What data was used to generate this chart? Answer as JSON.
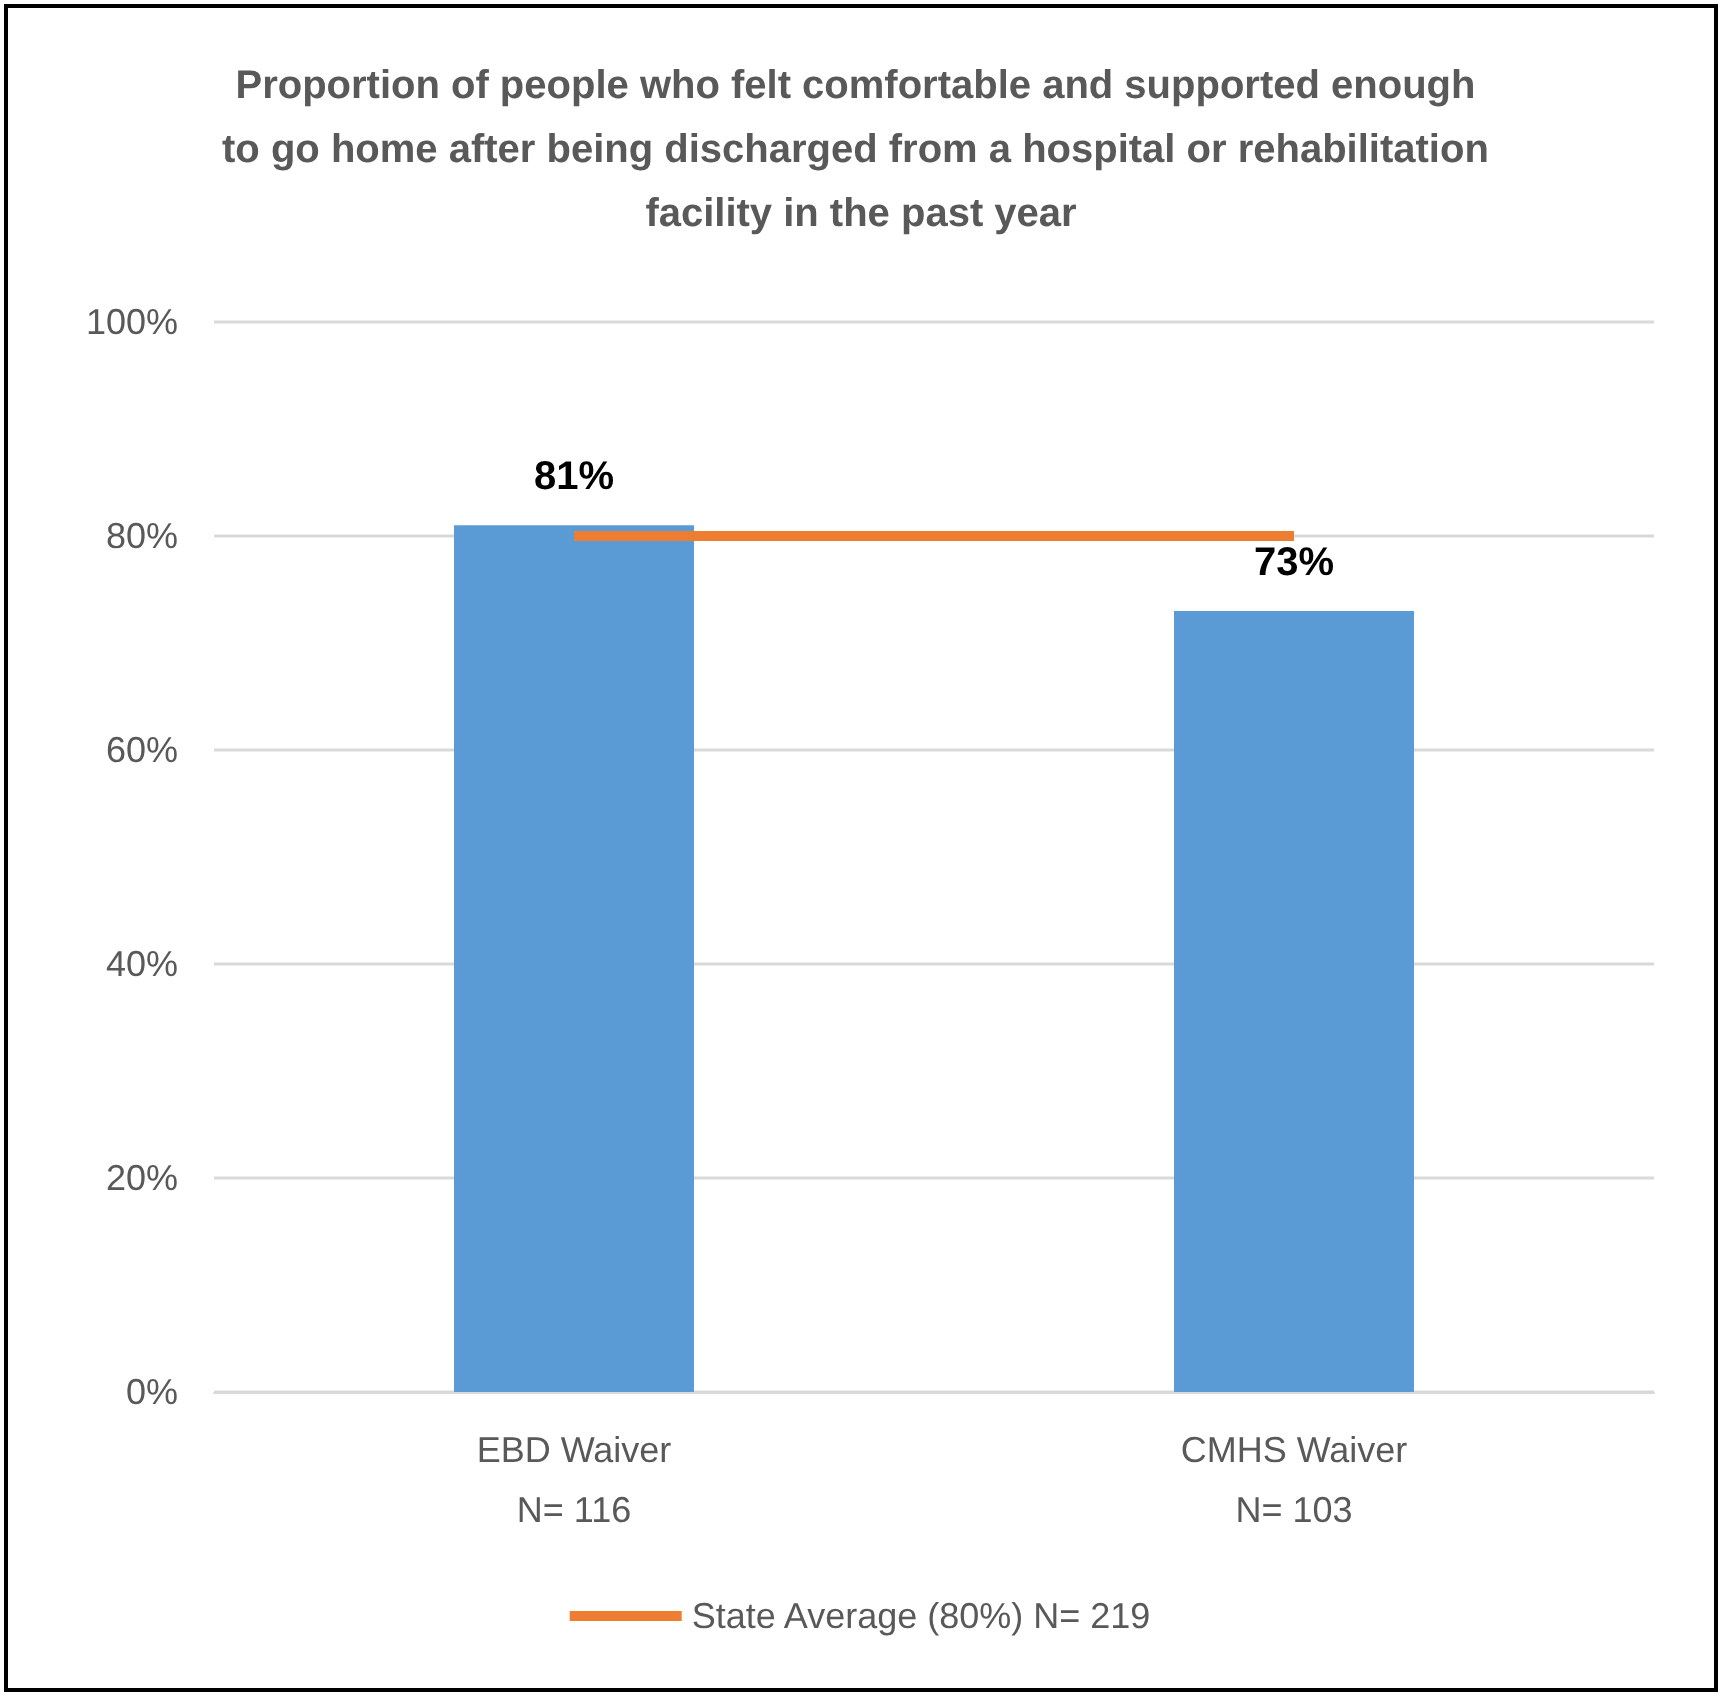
{
  "chart_data": {
    "type": "bar",
    "title": "Proportion of people who felt comfortable and supported enough to go home after being discharged from a hospital or rehabilitation facility in the past year",
    "categories": [
      "EBD Waiver\nN= 116",
      "CMHS Waiver\nN= 103"
    ],
    "series": [
      {
        "color": "#5b9bd5",
        "values": [
          81,
          73
        ],
        "value_labels": [
          "81%",
          "73%"
        ]
      },
      {
        "type": "line",
        "name": "State Average (80%) N= 219",
        "color": "#ed7d31",
        "values": [
          80,
          80
        ],
        "marker": "none",
        "line_style": "solid"
      }
    ],
    "ylim": [
      0,
      100
    ],
    "yticks": [
      {
        "value": 0,
        "label": "0%"
      },
      {
        "value": 20,
        "label": "20%"
      },
      {
        "value": 40,
        "label": "40%"
      },
      {
        "value": 60,
        "label": "60%"
      },
      {
        "value": 80,
        "label": "80%"
      },
      {
        "value": 100,
        "label": "100%"
      }
    ],
    "grid": "y",
    "legend": "bottom"
  }
}
